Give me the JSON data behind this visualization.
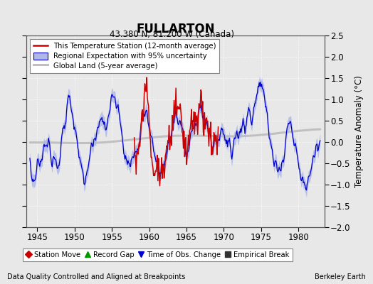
{
  "title": "FULLARTON",
  "subtitle": "43.380 N, 81.200 W (Canada)",
  "ylabel": "Temperature Anomaly (°C)",
  "footer_left": "Data Quality Controlled and Aligned at Breakpoints",
  "footer_right": "Berkeley Earth",
  "xlim": [
    1943.5,
    1983.5
  ],
  "ylim": [
    -2.0,
    2.5
  ],
  "yticks": [
    -2,
    -1.5,
    -1,
    -0.5,
    0,
    0.5,
    1,
    1.5,
    2,
    2.5
  ],
  "xticks": [
    1945,
    1950,
    1955,
    1960,
    1965,
    1970,
    1975,
    1980
  ],
  "bg_color": "#e8e8e8",
  "plot_bg_color": "#e8e8e8",
  "grid_color": "#ffffff",
  "blue_line_color": "#0000cc",
  "blue_fill_color": "#b0b8e8",
  "red_line_color": "#cc0000",
  "gray_line_color": "#c0c0c0",
  "legend_labels": [
    "This Temperature Station (12-month average)",
    "Regional Expectation with 95% uncertainty",
    "Global Land (5-year average)"
  ],
  "marker_items": [
    {
      "label": "Station Move",
      "marker": "D",
      "color": "#cc0000"
    },
    {
      "label": "Record Gap",
      "marker": "^",
      "color": "#009900"
    },
    {
      "label": "Time of Obs. Change",
      "marker": "v",
      "color": "#0000cc"
    },
    {
      "label": "Empirical Break",
      "marker": "s",
      "color": "#333333"
    }
  ]
}
